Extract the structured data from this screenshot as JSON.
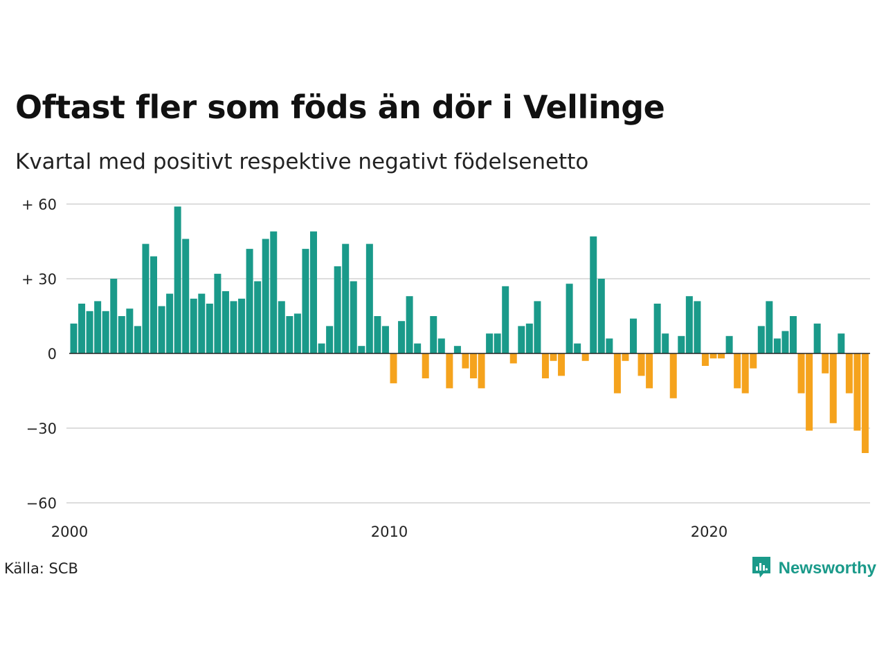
{
  "title": "Oftast fler som föds än dör i Vellinge",
  "subtitle": "Kvartal med positivt respektive negativt födelsenetto",
  "source": "Källa: SCB",
  "brand": {
    "name": "Newsworthy",
    "icon": "newsworthy-logo-icon"
  },
  "colors": {
    "positive": "#1a9a8a",
    "negative": "#f5a31d",
    "grid": "#dddddd",
    "zero": "#222222"
  },
  "chart_data": {
    "type": "bar",
    "x_start": "2000 Q1",
    "x_ticks": [
      "2000",
      "2010",
      "2020"
    ],
    "y_ticks": [
      {
        "value": 60,
        "label": "+ 60"
      },
      {
        "value": 30,
        "label": "+ 30"
      },
      {
        "value": 0,
        "label": "0"
      },
      {
        "value": -30,
        "label": "−30"
      },
      {
        "value": -60,
        "label": "−60"
      }
    ],
    "ylim": [
      -60,
      60
    ],
    "grid": true,
    "values": [
      12,
      20,
      17,
      21,
      17,
      30,
      15,
      18,
      11,
      44,
      39,
      19,
      24,
      59,
      46,
      22,
      24,
      20,
      32,
      25,
      21,
      22,
      42,
      29,
      46,
      49,
      21,
      15,
      16,
      42,
      49,
      4,
      11,
      35,
      44,
      29,
      3,
      44,
      15,
      11,
      -12,
      13,
      23,
      4,
      -10,
      15,
      6,
      -14,
      3,
      -6,
      -10,
      -14,
      8,
      8,
      27,
      -4,
      11,
      12,
      21,
      -10,
      -3,
      -9,
      28,
      4,
      -3,
      47,
      30,
      6,
      -16,
      -3,
      14,
      -9,
      -14,
      20,
      8,
      -18,
      7,
      23,
      21,
      -5,
      -2,
      -2,
      7,
      -14,
      -16,
      -6,
      11,
      21,
      6,
      9,
      15,
      -16,
      -31,
      12,
      -8,
      -28,
      8,
      -16,
      -31,
      -40
    ]
  }
}
